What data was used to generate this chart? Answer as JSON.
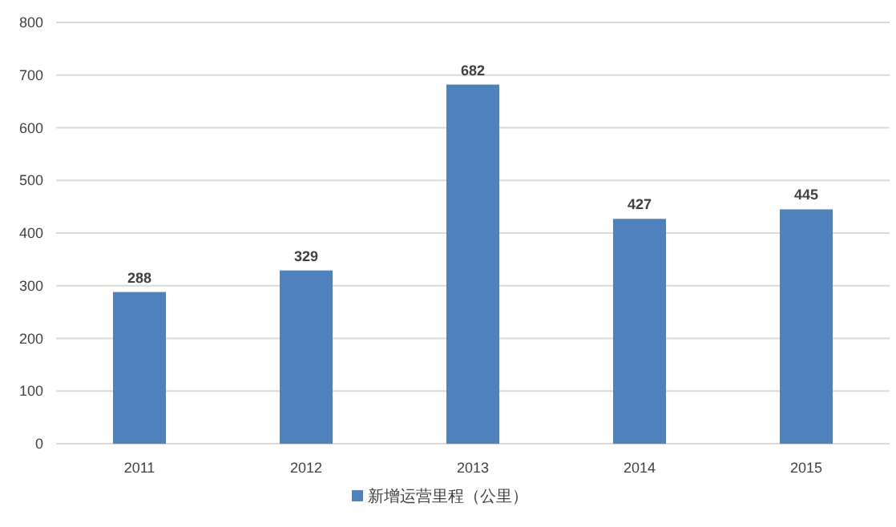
{
  "chart_data": {
    "type": "bar",
    "categories": [
      "2011",
      "2012",
      "2013",
      "2014",
      "2015"
    ],
    "series": [
      {
        "name": "新增运营里程（公里）",
        "color": "#4f81bd",
        "values": [
          288,
          329,
          682,
          427,
          445
        ]
      }
    ],
    "ylim": [
      0,
      800
    ],
    "yticks": [
      0,
      100,
      200,
      300,
      400,
      500,
      600,
      700,
      800
    ],
    "grid": "y",
    "legend": "bottom",
    "data_labels": true
  }
}
